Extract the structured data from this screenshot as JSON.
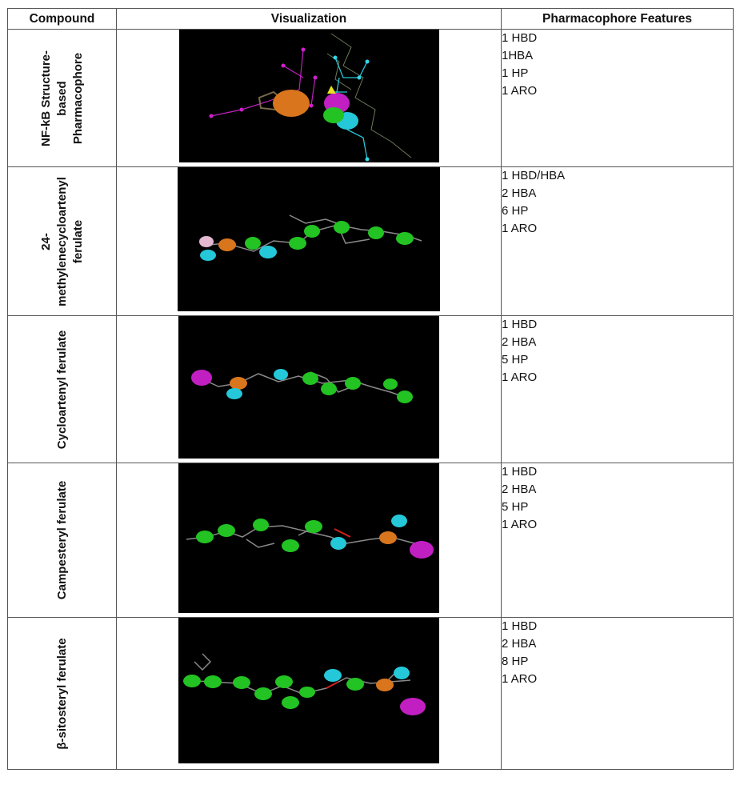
{
  "table": {
    "headers": [
      "Compound",
      "Visualization",
      "Pharmacophore Features"
    ],
    "rows": [
      {
        "compound": "NF-kB Structure-based Pharmacophore",
        "features": [
          "1 HBD",
          "1HBA",
          "1 HP",
          "1 ARO"
        ]
      },
      {
        "compound": "24-methylenecycloartenyl ferulate",
        "features": [
          "1 HBD/HBA",
          "2 HBA",
          "6 HP",
          "1 ARO"
        ]
      },
      {
        "compound": "Cycloartenyl ferulate",
        "features": [
          "1 HBD",
          "2 HBA",
          "5 HP",
          "1 ARO"
        ]
      },
      {
        "compound": "Campesteryl ferulate",
        "features": [
          "1 HBD",
          "2 HBA",
          "5 HP",
          "1 ARO"
        ]
      },
      {
        "compound": "β-sitosteryl ferulate",
        "features": [
          "1 HBD",
          "2 HBA",
          "8 HP",
          "1 ARO"
        ]
      }
    ]
  },
  "colors": {
    "hydrophobic": "#22c322",
    "acceptor": "#24c8d8",
    "donor": "#c21fc2",
    "aromatic": "#d8751d",
    "donor_acceptor": "#e3b8d0",
    "background": "#000000"
  }
}
